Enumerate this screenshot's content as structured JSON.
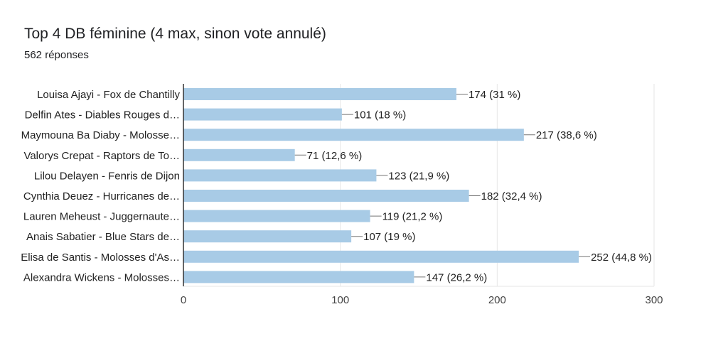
{
  "header": {
    "title": "Top 4 DB féminine (4 max, sinon vote annulé)",
    "subtitle": "562 réponses"
  },
  "colors": {
    "bar": "#a8cbe6",
    "leader": "#757575",
    "axis": "#333333",
    "grid": "#e6e6e6"
  },
  "chart_data": {
    "type": "bar",
    "orientation": "horizontal",
    "title": "Top 4 DB féminine (4 max, sinon vote annulé)",
    "subtitle": "562 réponses",
    "categories": [
      "Louisa Ajayi - Fox de Chantilly",
      "Delfin Ates - Diables Rouges d…",
      "Maymouna Ba Diaby - Molosse…",
      "Valorys Crepat - Raptors de To…",
      "Lilou Delayen - Fenris de Dijon",
      "Cynthia Deuez - Hurricanes de…",
      "Lauren Meheust - Juggernaute…",
      "Anais Sabatier - Blue Stars de…",
      "Elisa de Santis - Molosses d'As…",
      "Alexandra Wickens - Molosses…"
    ],
    "values": [
      174,
      101,
      217,
      71,
      123,
      182,
      119,
      107,
      252,
      147
    ],
    "data_labels": [
      "174 (31 %)",
      "101 (18 %)",
      "217 (38,6 %)",
      "71 (12,6 %)",
      "123 (21,9 %)",
      "182 (32,4 %)",
      "119 (21,2 %)",
      "107 (19 %)",
      "252 (44,8 %)",
      "147 (26,2 %)"
    ],
    "xlim": [
      0,
      300
    ],
    "xticks": [
      "0",
      "100",
      "200",
      "300"
    ],
    "xticks_values": [
      0,
      100,
      200,
      300
    ],
    "grid": true,
    "legend": "none"
  }
}
